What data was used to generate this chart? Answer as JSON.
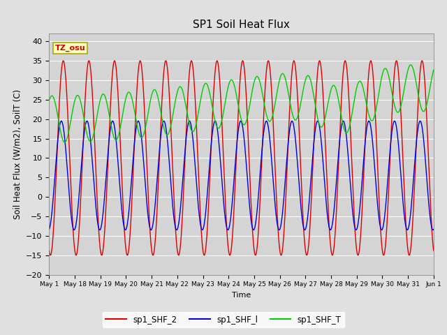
{
  "title": "SP1 Soil Heat Flux",
  "xlabel": "Time",
  "ylabel": "Soil Heat Flux (W/m2), SoilT (C)",
  "ylim": [
    -20,
    42
  ],
  "yticks": [
    -20,
    -15,
    -10,
    -5,
    0,
    5,
    10,
    15,
    20,
    25,
    30,
    35,
    40
  ],
  "tz_label": "TZ_osu",
  "line_colors": {
    "SHF2": "#dd0000",
    "SHF1": "#0000dd",
    "SHFT": "#00cc00"
  },
  "xtick_labels": [
    "May 1",
    "May 18",
    "May 19",
    "May 20",
    "May 21",
    "May 22",
    "May 23",
    "May 24",
    "May 25",
    "May 26",
    "May 27",
    "May 28",
    "May 29",
    "May 30",
    "May 31",
    "Jun 1"
  ],
  "background_color": "#e0e0e0",
  "plot_bg_color": "#d4d4d4",
  "grid_color": "#f0f0f0",
  "title_fontsize": 11,
  "axis_fontsize": 8,
  "ylabel_fontsize": 8.5
}
